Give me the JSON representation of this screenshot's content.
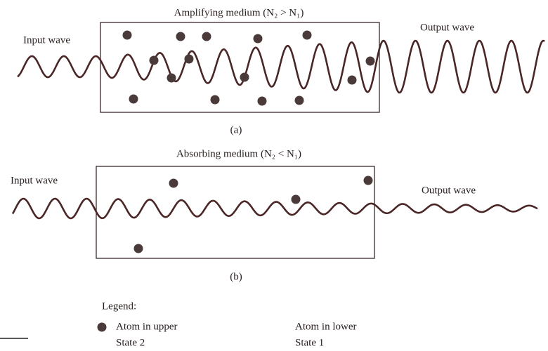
{
  "panels": [
    {
      "title": "Amplifying medium  (N₂ > N₁)",
      "input_label": "Input wave",
      "output_label": "Output wave",
      "caption": "(a)"
    },
    {
      "title": "Absorbing medium  (N₂ < N₁)",
      "input_label": "Input wave",
      "output_label": "Output wave",
      "caption": "(b)"
    }
  ],
  "legend": {
    "title": "Legend:",
    "upper": [
      "Atom in upper",
      "State 2"
    ],
    "lower": [
      "Atom in lower",
      "State 1"
    ]
  }
}
